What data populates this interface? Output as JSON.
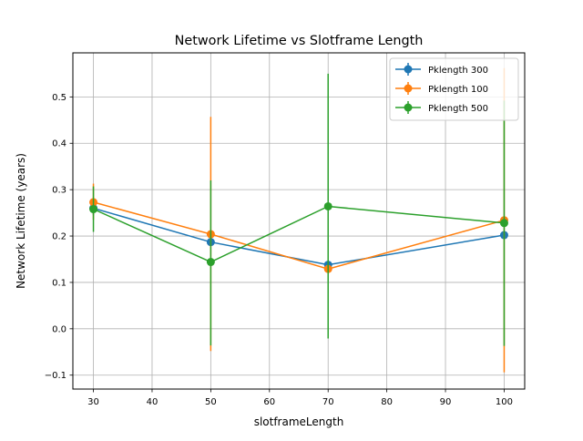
{
  "chart_data": {
    "type": "line",
    "title": "Network Lifetime vs Slotframe Length",
    "xlabel": "slotframeLength",
    "ylabel": "Network Lifetime (years)",
    "xlim": [
      26.5,
      103.5
    ],
    "ylim": [
      -0.13,
      0.595
    ],
    "xticks": [
      30,
      40,
      50,
      60,
      70,
      80,
      90,
      100
    ],
    "xtick_labels": [
      "30",
      "40",
      "50",
      "60",
      "70",
      "80",
      "90",
      "100"
    ],
    "yticks": [
      -0.1,
      0.0,
      0.1,
      0.2,
      0.3,
      0.4,
      0.5
    ],
    "ytick_labels": [
      "−0.1",
      "0.0",
      "0.1",
      "0.2",
      "0.3",
      "0.4",
      "0.5"
    ],
    "grid": true,
    "legend_position": "top-right",
    "error_bars": true,
    "x": [
      30,
      50,
      70,
      100
    ],
    "series": [
      {
        "name": "Pklength 300",
        "color": "#1f77b4",
        "values": [
          0.26,
          0.187,
          0.138,
          0.202
        ],
        "err_low": [
          0.245,
          0.183,
          0.135,
          0.198
        ],
        "err_high": [
          0.275,
          0.191,
          0.141,
          0.206
        ]
      },
      {
        "name": "Pklength 100",
        "color": "#ff7f0e",
        "values": [
          0.273,
          0.204,
          0.129,
          0.234
        ],
        "err_low": [
          0.235,
          -0.048,
          0.124,
          -0.094
        ],
        "err_high": [
          0.313,
          0.457,
          0.134,
          0.562
        ]
      },
      {
        "name": "Pklength 500",
        "color": "#2ca02c",
        "values": [
          0.258,
          0.144,
          0.264,
          0.228
        ],
        "err_low": [
          0.209,
          -0.036,
          -0.021,
          -0.037
        ],
        "err_high": [
          0.307,
          0.32,
          0.55,
          0.492
        ]
      }
    ]
  }
}
